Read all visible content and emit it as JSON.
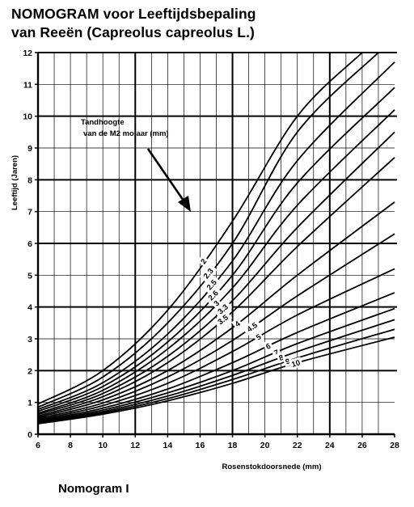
{
  "title": {
    "line1": "NOMOGRAM voor Leeftijdsbepaling",
    "line2": "van Reeën (Capreolus capreolus L.)"
  },
  "footer": "Nomogram  I",
  "annotation": {
    "line1": "Tandhoogte",
    "line2": "van de  M2 molaar (mm)"
  },
  "chart_data": {
    "type": "line",
    "xlabel": "Rosenstokdoorsnede (mm)",
    "ylabel": "Leeftijd (Jaren)",
    "xlim": [
      6,
      28
    ],
    "ylim": [
      0,
      12
    ],
    "x_ticks": [
      6,
      8,
      10,
      12,
      14,
      16,
      18,
      20,
      22,
      24,
      26,
      28
    ],
    "y_ticks": [
      0,
      1,
      2,
      3,
      4,
      5,
      6,
      7,
      8,
      9,
      10,
      11,
      12
    ],
    "bold_grid_x": [
      12,
      18,
      24
    ],
    "bold_grid_y": [
      2,
      4,
      6,
      8,
      10,
      12
    ],
    "grid": true,
    "legend": "none",
    "series": [
      {
        "name": "2",
        "x": [
          6,
          10,
          14,
          18,
          22,
          26
        ],
        "y": [
          0.95,
          2.0,
          3.9,
          6.7,
          10.0,
          12.0
        ]
      },
      {
        "name": "2.3",
        "x": [
          6,
          10,
          14,
          18,
          22,
          27
        ],
        "y": [
          0.85,
          1.8,
          3.5,
          6.0,
          9.5,
          12.0
        ]
      },
      {
        "name": "2.5",
        "x": [
          6,
          10,
          14,
          18,
          22,
          28
        ],
        "y": [
          0.78,
          1.62,
          3.15,
          5.45,
          8.6,
          11.7
        ]
      },
      {
        "name": "2.6",
        "x": [
          6,
          10,
          14,
          18,
          22,
          28
        ],
        "y": [
          0.72,
          1.5,
          2.9,
          5.0,
          7.9,
          10.9
        ]
      },
      {
        "name": "3",
        "x": [
          6,
          10,
          14,
          18,
          22,
          28
        ],
        "y": [
          0.66,
          1.38,
          2.68,
          4.6,
          7.2,
          10.2
        ]
      },
      {
        "name": "3.3",
        "x": [
          6,
          10,
          14,
          18,
          22,
          28
        ],
        "y": [
          0.62,
          1.28,
          2.45,
          4.2,
          6.5,
          9.5
        ]
      },
      {
        "name": "3.5",
        "x": [
          6,
          10,
          14,
          18,
          22,
          28
        ],
        "y": [
          0.57,
          1.18,
          2.25,
          3.85,
          5.9,
          8.7
        ]
      },
      {
        "name": "4",
        "x": [
          6,
          10,
          14,
          18,
          22,
          28
        ],
        "y": [
          0.53,
          1.08,
          2.0,
          3.35,
          5.0,
          7.3
        ]
      },
      {
        "name": "4.5",
        "x": [
          6,
          10,
          14,
          18,
          22,
          28
        ],
        "y": [
          0.49,
          0.98,
          1.8,
          2.95,
          4.35,
          6.3
        ]
      },
      {
        "name": "5",
        "x": [
          6,
          10,
          14,
          18,
          22,
          28
        ],
        "y": [
          0.45,
          0.9,
          1.6,
          2.6,
          3.75,
          5.2
        ]
      },
      {
        "name": "6",
        "x": [
          6,
          10,
          14,
          18,
          22,
          28
        ],
        "y": [
          0.42,
          0.82,
          1.42,
          2.25,
          3.2,
          4.45
        ]
      },
      {
        "name": "7",
        "x": [
          6,
          10,
          14,
          18,
          22,
          28
        ],
        "y": [
          0.39,
          0.76,
          1.3,
          2.0,
          2.85,
          3.95
        ]
      },
      {
        "name": "8",
        "x": [
          6,
          10,
          14,
          18,
          22,
          28
        ],
        "y": [
          0.37,
          0.71,
          1.2,
          1.85,
          2.6,
          3.6
        ]
      },
      {
        "name": "9",
        "x": [
          6,
          10,
          14,
          18,
          22,
          28
        ],
        "y": [
          0.35,
          0.67,
          1.12,
          1.72,
          2.4,
          3.3
        ]
      },
      {
        "name": "10",
        "x": [
          6,
          10,
          14,
          18,
          22,
          28
        ],
        "y": [
          0.33,
          0.63,
          1.05,
          1.6,
          2.25,
          3.05
        ]
      }
    ],
    "curve_labels_x": [
      16.2,
      16.5,
      16.7,
      16.8,
      17.0,
      17.4,
      17.4,
      18.3,
      19.2,
      19.6,
      20.2,
      20.7,
      21.0,
      21.4,
      21.9
    ]
  }
}
